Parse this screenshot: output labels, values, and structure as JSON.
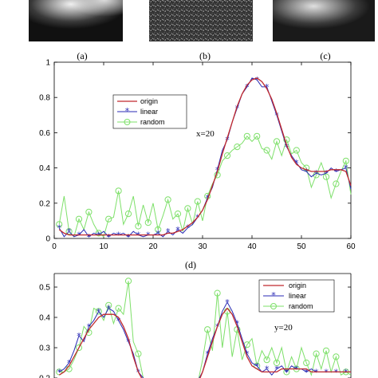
{
  "images": {
    "captions": [
      "(a)",
      "(b)",
      "(c)"
    ]
  },
  "colors": {
    "origin": "#c0282d",
    "linear": "#2a2ab5",
    "random": "#7ee06a"
  },
  "chart_data": [
    {
      "type": "line",
      "caption": "(d)",
      "annotation": "x=20",
      "xlim": [
        0,
        60
      ],
      "ylim": [
        0,
        1
      ],
      "xticks": [
        "0",
        "10",
        "20",
        "30",
        "40",
        "50",
        "60"
      ],
      "yticks": [
        "0",
        "0.2",
        "0.4",
        "0.6",
        "0.8",
        "1"
      ],
      "legend": [
        "origin",
        "linear",
        "random"
      ],
      "x": [
        1,
        2,
        3,
        4,
        5,
        6,
        7,
        8,
        9,
        10,
        11,
        12,
        13,
        14,
        15,
        16,
        17,
        18,
        19,
        20,
        21,
        22,
        23,
        24,
        25,
        26,
        27,
        28,
        29,
        30,
        31,
        32,
        33,
        34,
        35,
        36,
        37,
        38,
        39,
        40,
        41,
        42,
        43,
        44,
        45,
        46,
        47,
        48,
        49,
        50,
        51,
        52,
        53,
        54,
        55,
        56,
        57,
        58,
        59,
        60
      ],
      "series": [
        {
          "name": "origin",
          "values": [
            0.05,
            0.03,
            0.02,
            0.02,
            0.02,
            0.02,
            0.02,
            0.02,
            0.02,
            0.02,
            0.02,
            0.02,
            0.02,
            0.02,
            0.02,
            0.02,
            0.02,
            0.02,
            0.02,
            0.02,
            0.02,
            0.02,
            0.03,
            0.03,
            0.04,
            0.05,
            0.07,
            0.09,
            0.12,
            0.16,
            0.22,
            0.3,
            0.38,
            0.48,
            0.57,
            0.66,
            0.75,
            0.82,
            0.87,
            0.9,
            0.91,
            0.89,
            0.85,
            0.79,
            0.71,
            0.62,
            0.53,
            0.46,
            0.42,
            0.4,
            0.39,
            0.38,
            0.38,
            0.38,
            0.38,
            0.39,
            0.39,
            0.39,
            0.38,
            0.3
          ]
        },
        {
          "name": "linear",
          "values": [
            0.06,
            0.01,
            0.04,
            0.01,
            0.02,
            0.05,
            0.01,
            0.03,
            0.02,
            0.04,
            0.01,
            0.03,
            0.02,
            0.03,
            0.01,
            0.04,
            0.02,
            0.01,
            0.02,
            0.02,
            0.03,
            0.01,
            0.04,
            0.02,
            0.05,
            0.03,
            0.06,
            0.08,
            0.12,
            0.16,
            0.23,
            0.29,
            0.39,
            0.5,
            0.56,
            0.66,
            0.74,
            0.82,
            0.86,
            0.91,
            0.9,
            0.86,
            0.86,
            0.78,
            0.7,
            0.61,
            0.52,
            0.47,
            0.43,
            0.39,
            0.38,
            0.35,
            0.37,
            0.36,
            0.37,
            0.4,
            0.38,
            0.39,
            0.4,
            0.28
          ]
        },
        {
          "name": "random",
          "values": [
            0.08,
            0.24,
            0.04,
            0.01,
            0.11,
            0.05,
            0.15,
            0.08,
            0.03,
            0.01,
            0.11,
            0.12,
            0.27,
            0.08,
            0.14,
            0.24,
            0.07,
            0.19,
            0.09,
            0.2,
            0.05,
            0.13,
            0.22,
            0.11,
            0.14,
            0.04,
            0.17,
            0.08,
            0.21,
            0.1,
            0.24,
            0.31,
            0.36,
            0.44,
            0.47,
            0.5,
            0.52,
            0.54,
            0.58,
            0.55,
            0.58,
            0.51,
            0.5,
            0.45,
            0.55,
            0.47,
            0.56,
            0.48,
            0.5,
            0.43,
            0.4,
            0.29,
            0.36,
            0.43,
            0.35,
            0.23,
            0.31,
            0.38,
            0.44,
            0.25
          ]
        }
      ]
    },
    {
      "type": "line",
      "annotation": "y=20",
      "xlim": [
        0,
        60
      ],
      "ylim": [
        0.2,
        0.5
      ],
      "yticks": [
        "0.2",
        "0.3",
        "0.4",
        "0.5"
      ],
      "legend": [
        "origin",
        "linear",
        "random"
      ],
      "x": [
        1,
        2,
        3,
        4,
        5,
        6,
        7,
        8,
        9,
        10,
        11,
        12,
        13,
        14,
        15,
        16,
        17,
        18,
        19,
        20,
        21,
        22,
        23,
        24,
        25,
        26,
        27,
        28,
        29,
        30,
        31,
        32,
        33,
        34,
        35,
        36,
        37,
        38,
        39,
        40,
        41,
        42,
        43,
        44,
        45,
        46,
        47,
        48,
        49,
        50,
        51,
        52,
        53,
        54,
        55,
        56,
        57,
        58,
        59,
        60
      ],
      "series": [
        {
          "name": "origin",
          "values": [
            0.21,
            0.22,
            0.24,
            0.27,
            0.3,
            0.33,
            0.36,
            0.38,
            0.4,
            0.41,
            0.41,
            0.41,
            0.4,
            0.37,
            0.33,
            0.27,
            0.22,
            0.19,
            0.18,
            0.18,
            0.18,
            0.18,
            0.18,
            0.18,
            0.18,
            0.18,
            0.18,
            0.18,
            0.18,
            0.22,
            0.27,
            0.32,
            0.37,
            0.41,
            0.43,
            0.41,
            0.37,
            0.32,
            0.27,
            0.24,
            0.23,
            0.22,
            0.22,
            0.22,
            0.22,
            0.23,
            0.23,
            0.23,
            0.23,
            0.23,
            0.23,
            0.22,
            0.22,
            0.22,
            0.22,
            0.22,
            0.22,
            0.22,
            0.22,
            0.22
          ]
        },
        {
          "name": "linear",
          "values": [
            0.22,
            0.23,
            0.25,
            0.29,
            0.34,
            0.32,
            0.37,
            0.39,
            0.42,
            0.4,
            0.43,
            0.42,
            0.39,
            0.36,
            0.32,
            0.28,
            0.22,
            0.2,
            0.18,
            0.18,
            0.18,
            0.18,
            0.18,
            0.18,
            0.18,
            0.18,
            0.18,
            0.18,
            0.19,
            0.22,
            0.28,
            0.33,
            0.37,
            0.42,
            0.45,
            0.42,
            0.38,
            0.33,
            0.28,
            0.25,
            0.24,
            0.22,
            0.23,
            0.21,
            0.23,
            0.24,
            0.22,
            0.24,
            0.23,
            0.23,
            0.22,
            0.23,
            0.22,
            0.22,
            0.22,
            0.22,
            0.22,
            0.22,
            0.22,
            0.22
          ]
        },
        {
          "name": "random",
          "values": [
            0.22,
            0.22,
            0.23,
            0.26,
            0.3,
            0.37,
            0.35,
            0.43,
            0.42,
            0.39,
            0.44,
            0.38,
            0.43,
            0.41,
            0.52,
            0.32,
            0.28,
            0.2,
            0.18,
            0.18,
            0.18,
            0.18,
            0.18,
            0.18,
            0.18,
            0.18,
            0.18,
            0.18,
            0.18,
            0.26,
            0.36,
            0.29,
            0.48,
            0.3,
            0.42,
            0.27,
            0.36,
            0.26,
            0.31,
            0.33,
            0.24,
            0.29,
            0.26,
            0.3,
            0.25,
            0.3,
            0.22,
            0.27,
            0.23,
            0.3,
            0.25,
            0.21,
            0.28,
            0.23,
            0.29,
            0.22,
            0.27,
            0.21,
            0.22,
            0.21
          ]
        }
      ]
    }
  ]
}
